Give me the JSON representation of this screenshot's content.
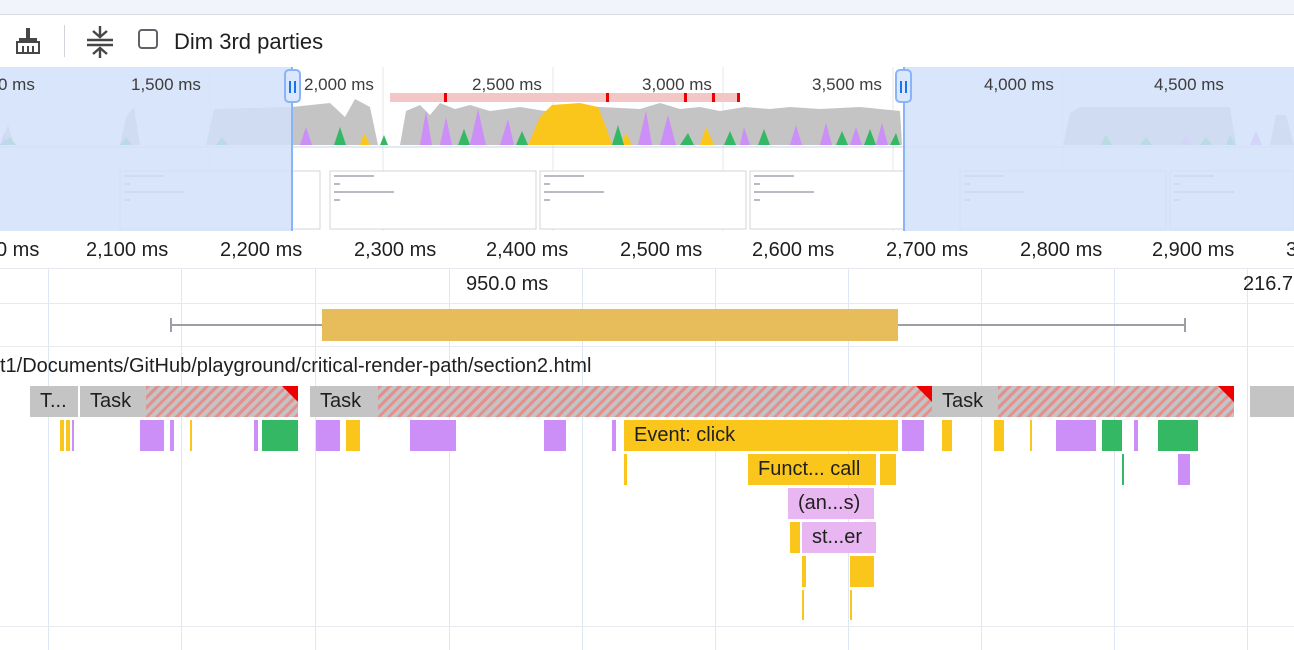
{
  "toolbar": {
    "broom_icon": "broom-icon",
    "collapse_icon": "collapse-vertical-icon",
    "dim_label": "Dim 3rd parties",
    "dim_checked": false
  },
  "overview": {
    "ticks": [
      "0 ms",
      "1,500 ms",
      "2,000 ms",
      "2,500 ms",
      "3,000 ms",
      "3,500 ms",
      "4,000 ms",
      "4,500 ms"
    ]
  },
  "ruler": {
    "ticks": [
      "0 ms",
      "2,100 ms",
      "2,200 ms",
      "2,300 ms",
      "2,400 ms",
      "2,500 ms",
      "2,600 ms",
      "2,700 ms",
      "2,800 ms",
      "2,900 ms",
      "3"
    ]
  },
  "selection": {
    "duration": "950.0 ms",
    "right_value": "216.7"
  },
  "thread": {
    "url": "t1/Documents/GitHub/playground/critical-render-path/section2.html"
  },
  "flame": {
    "task_short": "T...",
    "task": "Task",
    "event_click": "Event: click",
    "function_call": "Funct... call",
    "anon": "(an...s)",
    "st": "st...er"
  },
  "colors": {
    "scripting": "#fbc61b",
    "rendering": "#cc8ef7",
    "painting": "#34b864",
    "task": "#c4c4c4",
    "long_task": "#e00000",
    "selection": "#e7bc5a",
    "overview_mask": "#d2e0f9"
  }
}
